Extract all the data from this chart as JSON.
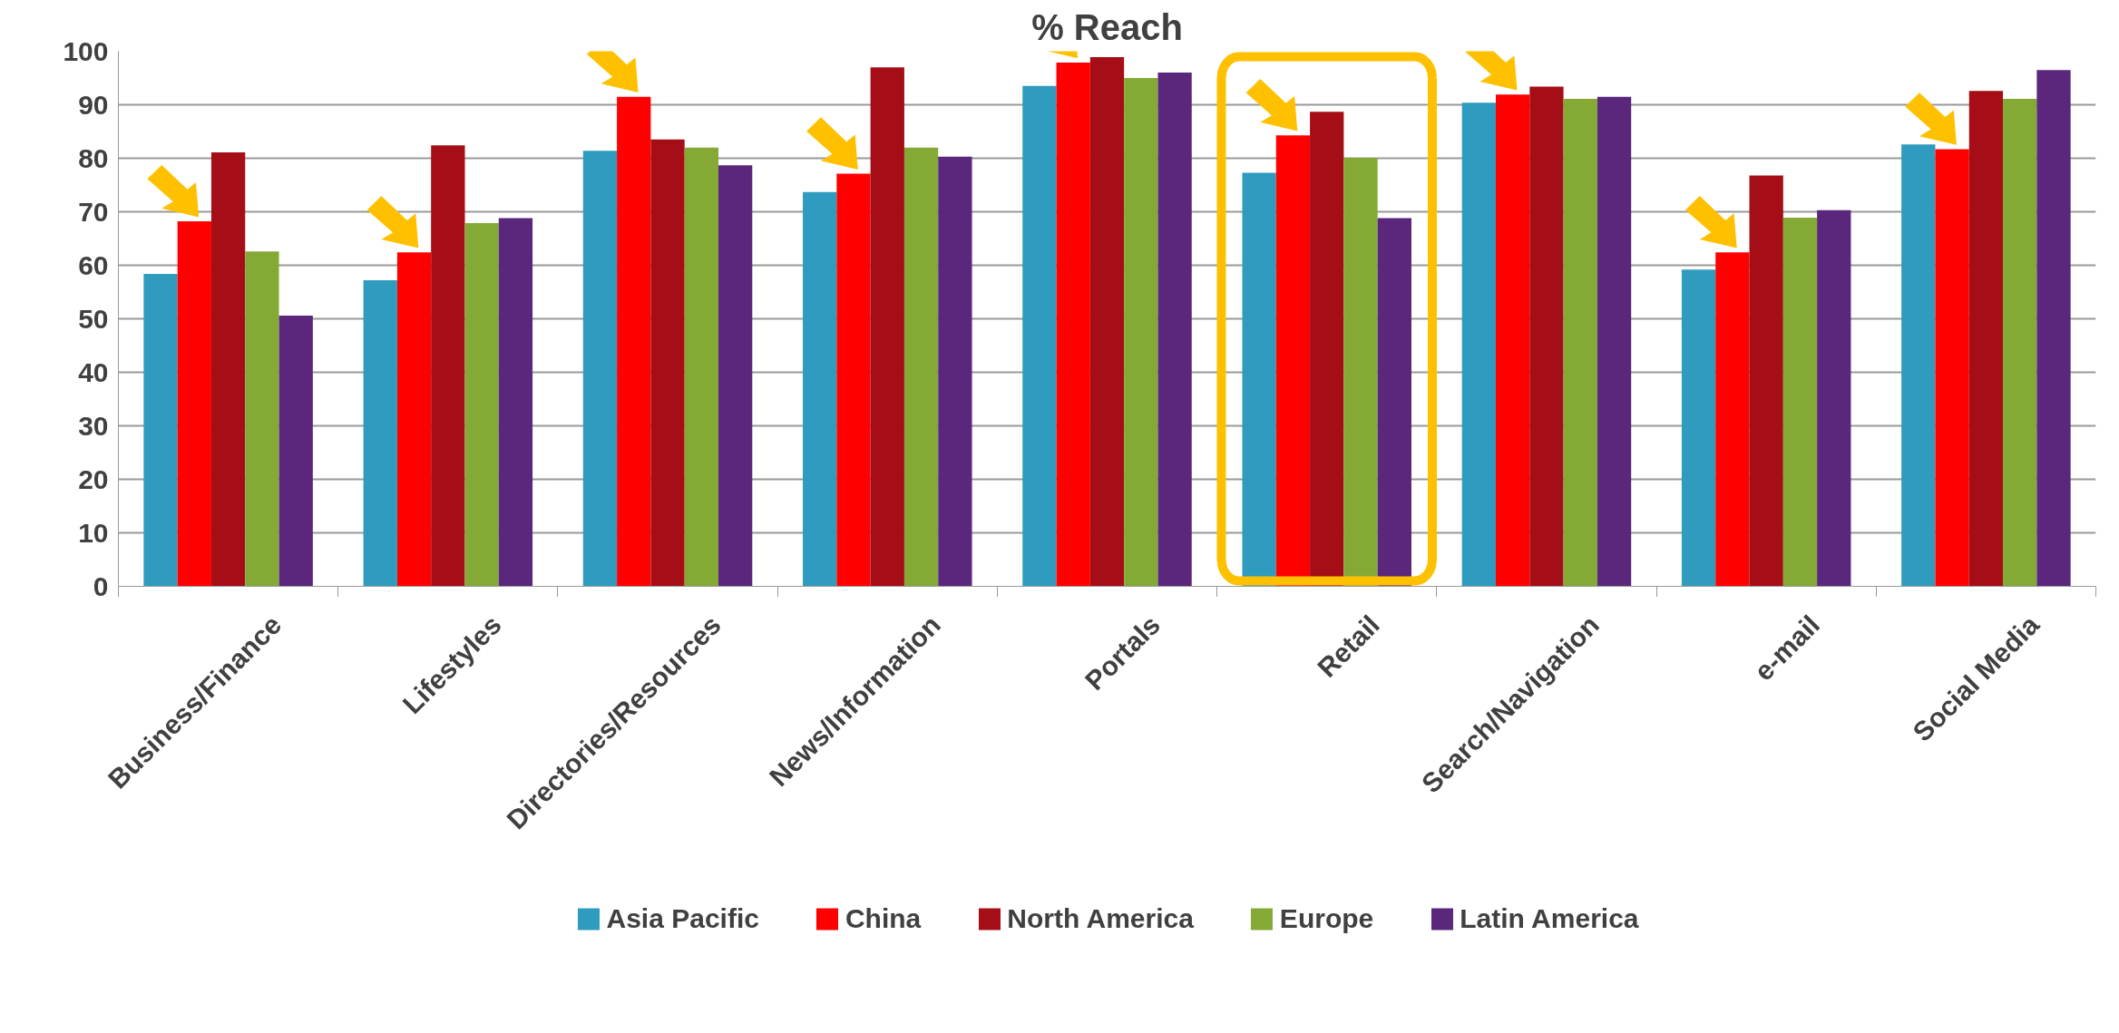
{
  "chart_data": {
    "type": "bar",
    "title": "% Reach",
    "categories": [
      "Business/Finance",
      "Lifestyles",
      "Directories/Resources",
      "News/Information",
      "Portals",
      "Retail",
      "Search/Navigation",
      "e-mail",
      "Social Media"
    ],
    "series": [
      {
        "name": "Asia Pacific",
        "color": "#2e9bbf",
        "values": [
          58.4,
          57.2,
          81.4,
          73.7,
          93.5,
          77.3,
          90.4,
          59.2,
          82.6
        ]
      },
      {
        "name": "China",
        "color": "#ff0000",
        "values": [
          68.2,
          62.4,
          91.5,
          77.1,
          97.9,
          84.3,
          91.9,
          62.4,
          81.7
        ]
      },
      {
        "name": "North America",
        "color": "#a50e16",
        "values": [
          81.1,
          82.4,
          83.5,
          97.0,
          98.9,
          88.7,
          93.4,
          76.8,
          92.6
        ]
      },
      {
        "name": "Europe",
        "color": "#84aa35",
        "values": [
          62.6,
          67.9,
          82.0,
          82.0,
          95.0,
          80.1,
          91.1,
          68.9,
          91.1
        ]
      },
      {
        "name": "Latin America",
        "color": "#5b277d",
        "values": [
          50.6,
          68.8,
          78.7,
          80.3,
          96.0,
          68.8,
          91.5,
          70.3,
          96.5
        ]
      }
    ],
    "ylim": [
      0,
      100
    ],
    "yticks": [
      0,
      10,
      20,
      30,
      40,
      50,
      60,
      70,
      80,
      90,
      100
    ],
    "grid": "y",
    "legend": "bottom"
  }
}
